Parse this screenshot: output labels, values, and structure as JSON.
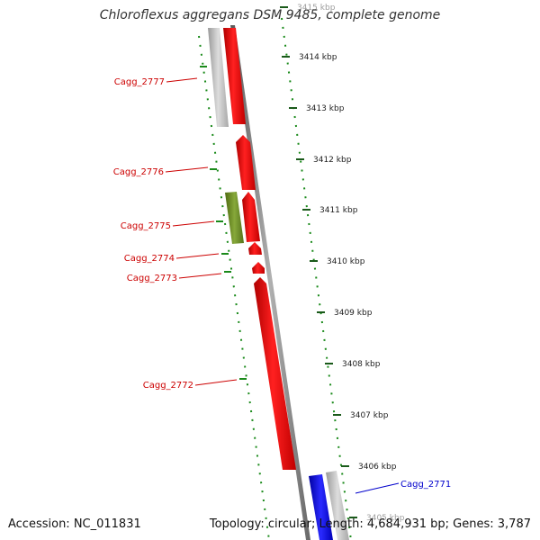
{
  "title": "Chloroflexus aggregans DSM 9485, complete genome",
  "footer": {
    "accession": "Accession: NC_011831",
    "stats": "Topology: circular; Length: 4,684,931 bp; Genes: 3,787"
  },
  "scale_unit": "kbp",
  "ticks": [
    {
      "label": "3415 kbp"
    },
    {
      "label": "3414 kbp"
    },
    {
      "label": "3413 kbp"
    },
    {
      "label": "3412 kbp"
    },
    {
      "label": "3411 kbp"
    },
    {
      "label": "3410 kbp"
    },
    {
      "label": "3409 kbp"
    },
    {
      "label": "3408 kbp"
    },
    {
      "label": "3407 kbp"
    },
    {
      "label": "3406 kbp"
    },
    {
      "label": "3405 kbp"
    }
  ],
  "genes": [
    {
      "name": "Cagg_2777",
      "color": "#cc0000"
    },
    {
      "name": "Cagg_2776",
      "color": "#cc0000"
    },
    {
      "name": "Cagg_2775",
      "color": "#cc0000"
    },
    {
      "name": "Cagg_2774",
      "color": "#cc0000"
    },
    {
      "name": "Cagg_2773",
      "color": "#cc0000"
    },
    {
      "name": "Cagg_2772",
      "color": "#cc0000"
    },
    {
      "name": "Cagg_2771",
      "color": "#0000cc"
    }
  ],
  "colors": {
    "forward_cds": "#ff0000",
    "reverse_cds": "#0000ee",
    "misc_feature": "#6b8e23",
    "gene_bar": "#bbbbbb",
    "backbone": "#808080",
    "gc_dots": "#1a8a1a"
  }
}
